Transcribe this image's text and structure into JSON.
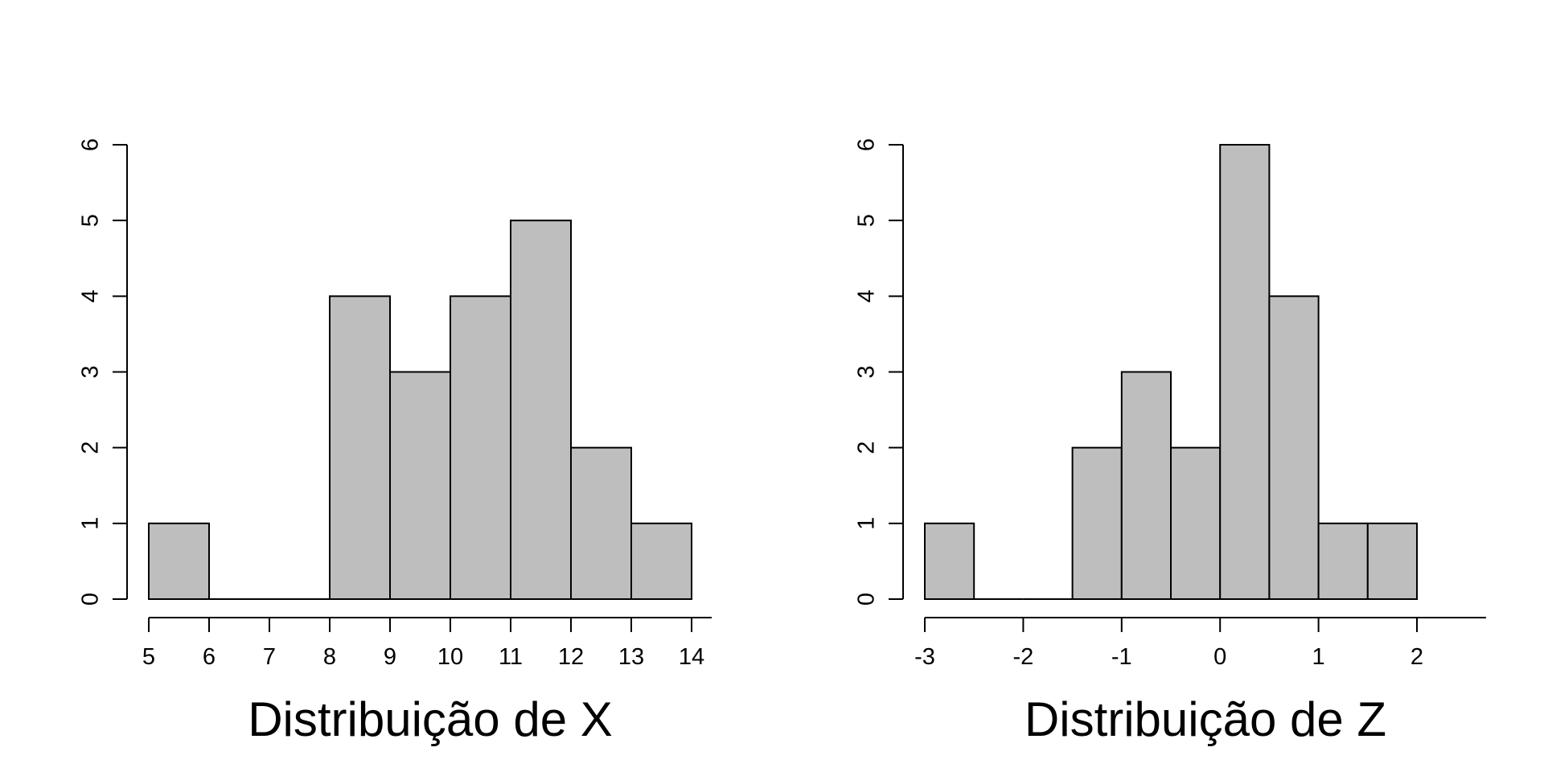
{
  "chart_data": [
    {
      "type": "bar",
      "xlabel": "Distribuição de X",
      "ylabel": "",
      "bin_edges": [
        5,
        6,
        7,
        8,
        9,
        10,
        11,
        12,
        13,
        14
      ],
      "values": [
        1,
        0,
        0,
        4,
        3,
        4,
        5,
        2,
        1
      ],
      "x_ticks": [
        "5",
        "6",
        "7",
        "8",
        "9",
        "10",
        "11",
        "12",
        "13",
        "14"
      ],
      "y_ticks": [
        "0",
        "1",
        "2",
        "3",
        "4",
        "5",
        "6"
      ],
      "ylim": [
        0,
        6
      ],
      "grid": false,
      "bar_color": "#bebebe",
      "edge_color": "#000000"
    },
    {
      "type": "bar",
      "xlabel": "Distribuição de Z",
      "ylabel": "",
      "bin_edges": [
        -3,
        -2.5,
        -2,
        -1.5,
        -1,
        -0.5,
        0,
        0.5,
        1,
        1.5,
        2
      ],
      "values": [
        1,
        0,
        0,
        2,
        3,
        2,
        6,
        4,
        1,
        1
      ],
      "x_ticks": [
        "-3",
        "-2",
        "-1",
        "0",
        "1",
        "2"
      ],
      "y_ticks": [
        "0",
        "1",
        "2",
        "3",
        "4",
        "5",
        "6"
      ],
      "ylim": [
        0,
        6
      ],
      "grid": false,
      "bar_color": "#bebebe",
      "edge_color": "#000000"
    }
  ]
}
